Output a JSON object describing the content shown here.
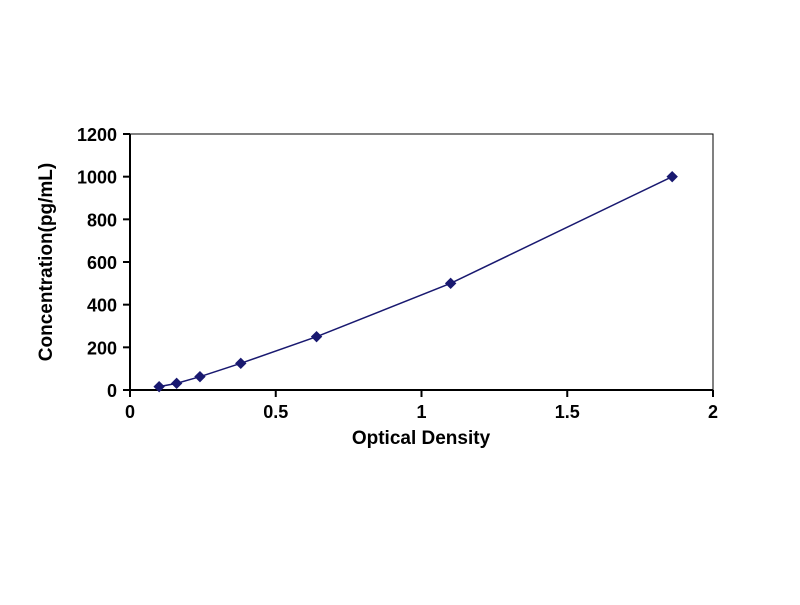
{
  "chart_data": {
    "type": "line",
    "title": "",
    "xlabel": "Optical Density",
    "ylabel": "Concentration(pg/mL)",
    "x": [
      0.1,
      0.16,
      0.24,
      0.38,
      0.64,
      1.1,
      1.86
    ],
    "y": [
      15.6,
      31.2,
      62.5,
      125,
      250,
      500,
      1000
    ],
    "xlim": [
      0,
      2
    ],
    "ylim": [
      0,
      1200
    ],
    "xticks": {
      "values": [
        0,
        0.5,
        1,
        1.5,
        2
      ],
      "labels": [
        "0",
        "0.5",
        "1",
        "1.5",
        "2"
      ]
    },
    "yticks": {
      "values": [
        0,
        200,
        400,
        600,
        800,
        1000,
        1200
      ],
      "labels": [
        "0",
        "200",
        "400",
        "600",
        "800",
        "1000",
        "1200"
      ]
    },
    "grid": false,
    "legend": "none",
    "marker": "diamond",
    "series_color": "#191970",
    "axis_color": "#000000",
    "background": "#ffffff"
  }
}
